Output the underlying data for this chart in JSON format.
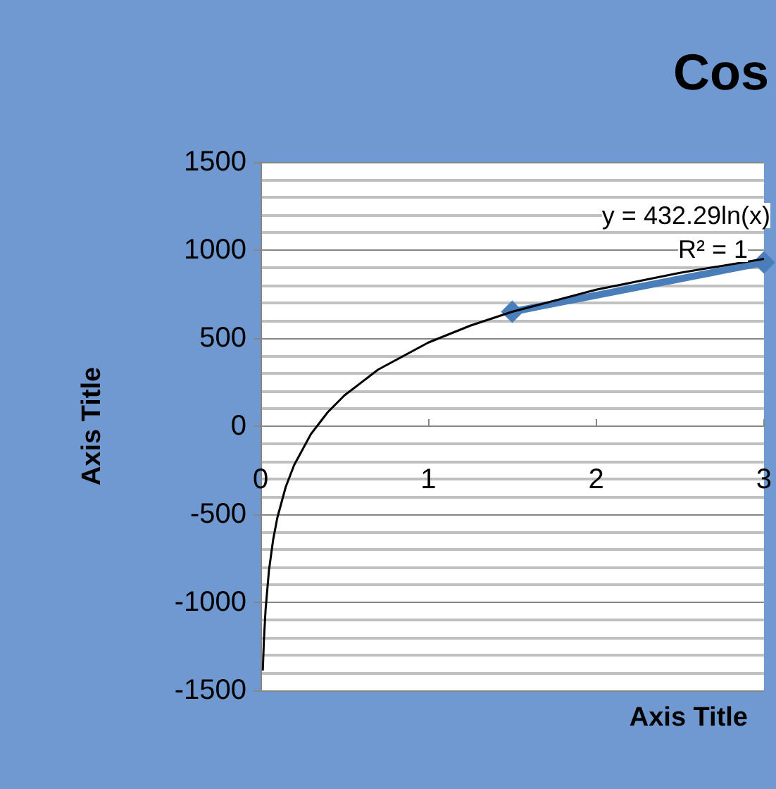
{
  "chart_data": {
    "type": "line",
    "title": "Cos",
    "xlabel": "Axis Title",
    "ylabel": "Axis Title",
    "annotations": [
      "y = 432.29ln(x)",
      "R² = 1"
    ],
    "xlim": [
      0,
      3
    ],
    "xticks": [
      0,
      1,
      2,
      3
    ],
    "ylim": [
      -1500,
      1500
    ],
    "yticks": [
      -1500,
      -1000,
      -500,
      0,
      500,
      1000,
      1500
    ],
    "grid": "y",
    "series": [
      {
        "color": "#4a7ebb",
        "marker": "diamond",
        "x": [
          1.5,
          3
        ],
        "values": [
          650,
          930
        ]
      },
      {
        "color": "#000000",
        "marker": "none",
        "x": [
          0.0135,
          0.02,
          0.03,
          0.05,
          0.075,
          0.1,
          0.15,
          0.2,
          0.3,
          0.4,
          0.5,
          0.7,
          1,
          1.25,
          1.5,
          2,
          2.5,
          3
        ],
        "values": [
          -1387,
          -1216,
          -1041,
          -820,
          -645,
          -520,
          -345,
          -221,
          -45,
          79,
          175,
          321,
          475,
          571,
          650,
          775,
          871,
          950
        ]
      }
    ]
  }
}
